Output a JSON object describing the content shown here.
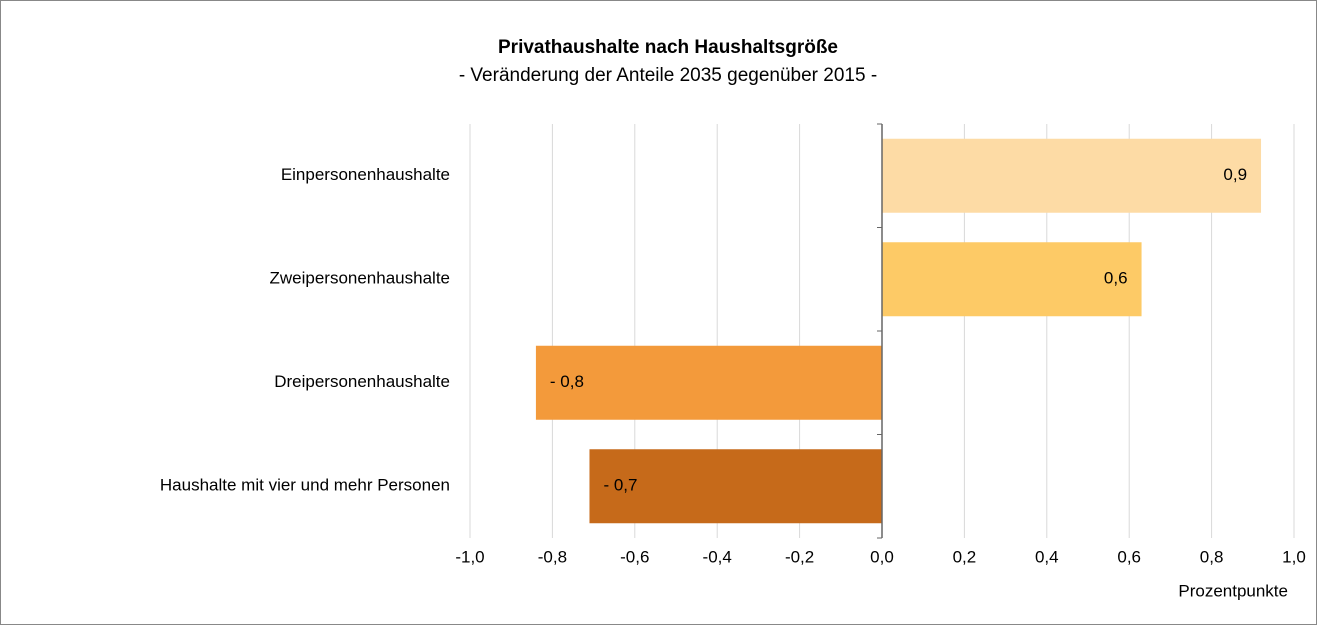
{
  "chart_data": {
    "type": "barh",
    "title": "Privathaushalte nach Haushaltsgröße",
    "subtitle": "- Veränderung der Anteile 2035 gegenüber 2015 -",
    "x_label": "Prozentpunkte",
    "categories": [
      "Einpersonenhaushalte",
      "Zweipersonenhaushalte",
      "Dreipersonenhaushalte",
      "Haushalte mit  vier und mehr Personen"
    ],
    "values": [
      0.92,
      0.63,
      -0.84,
      -0.71
    ],
    "value_labels": [
      "0,9",
      "0,6",
      "- 0,8",
      "- 0,7"
    ],
    "colors": [
      "#fddba5",
      "#fdca66",
      "#f39a3b",
      "#c66a1a"
    ],
    "xlim": [
      -1.0,
      1.0
    ],
    "xticks": [
      {
        "value": -1.0,
        "label": "-1,0"
      },
      {
        "value": -0.8,
        "label": "-0,8"
      },
      {
        "value": -0.6,
        "label": "-0,6"
      },
      {
        "value": -0.4,
        "label": "-0,4"
      },
      {
        "value": -0.2,
        "label": "-0,2"
      },
      {
        "value": 0.0,
        "label": "0,0"
      },
      {
        "value": 0.2,
        "label": "0,2"
      },
      {
        "value": 0.4,
        "label": "0,4"
      },
      {
        "value": 0.6,
        "label": "0,6"
      },
      {
        "value": 0.8,
        "label": "0,8"
      },
      {
        "value": 1.0,
        "label": "1,0"
      }
    ],
    "grid": true
  }
}
